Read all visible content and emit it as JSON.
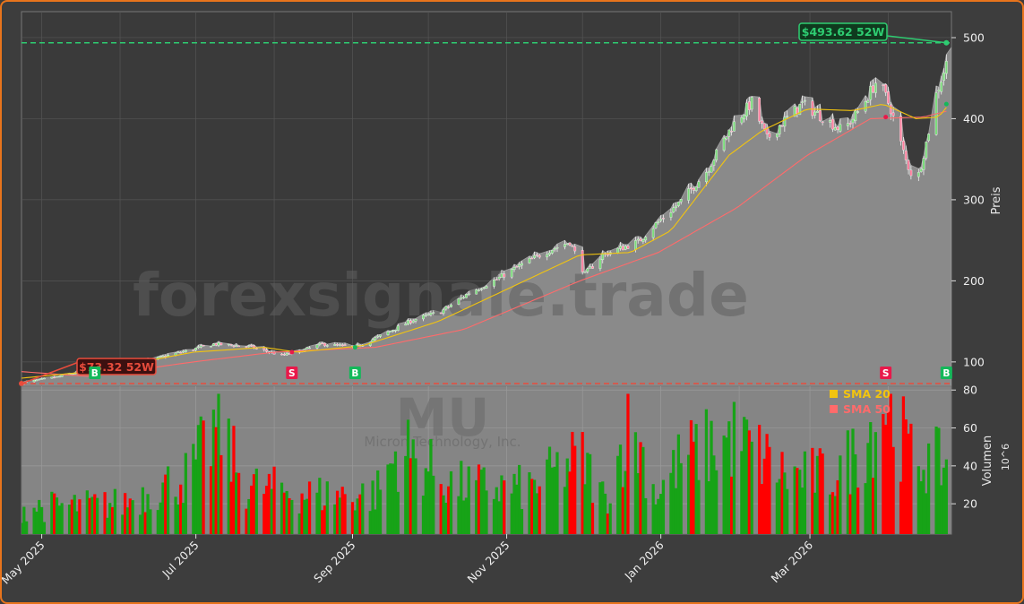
{
  "ticker": "MU",
  "company": "Micron Technology, Inc.",
  "watermark": "forexsignale.trade",
  "colors": {
    "frame": "#e8741c",
    "background": "#3d3d3d",
    "plot_dark": "#3a3a3a",
    "area_fill": "#8a8a8a",
    "up": "#17a317",
    "down": "#ff0000",
    "sma20": "#f2c40f",
    "sma50": "#ff6b6b",
    "high_line": "#2ecc71",
    "low_line": "#e74c3c",
    "buy": "#14b85a",
    "sell": "#e8194a"
  },
  "chart_data": {
    "type": "candlestick",
    "price_axis": {
      "label": "Preis",
      "ticks": [
        100,
        200,
        300,
        400,
        500
      ],
      "range": [
        70,
        532
      ]
    },
    "volume_axis": {
      "label": "Volumen",
      "unit": "10^6",
      "ticks": [
        20,
        40,
        60,
        80
      ],
      "range": [
        4,
        82
      ]
    },
    "x_axis": {
      "range": [
        "2025-04-23",
        "2026-04-26"
      ],
      "ticks": [
        "May 2025",
        "Jul 2025",
        "Sep 2025",
        "Nov 2025",
        "Jan 2026",
        "Mar 2026"
      ],
      "tick_dates": [
        "2025-05-01",
        "2025-07-01",
        "2025-09-01",
        "2025-11-01",
        "2026-01-01",
        "2026-03-01"
      ]
    },
    "legend": [
      {
        "name": "SMA 20",
        "color": "#f2c40f"
      },
      {
        "name": "SMA 50",
        "color": "#ff6b6b"
      }
    ],
    "legend_position": "top-right of volume panel",
    "grid": true,
    "high_52w": {
      "label": "$493.62 52W",
      "value": 493.62,
      "date": "2026-04-24"
    },
    "low_52w": {
      "label": "$73.32 52W",
      "value": 73.32,
      "date": "2025-04-23"
    },
    "signals": [
      {
        "type": "B",
        "date": "2025-05-22",
        "price": 85
      },
      {
        "type": "S",
        "date": "2025-08-08",
        "price": 112
      },
      {
        "type": "B",
        "date": "2025-09-02",
        "price": 118
      },
      {
        "type": "S",
        "date": "2026-03-31",
        "price": 402
      },
      {
        "type": "B",
        "date": "2026-04-24",
        "price": 418
      }
    ],
    "price_keypoints": [
      [
        "2025-04-23",
        74
      ],
      [
        "2025-05-08",
        82
      ],
      [
        "2025-05-22",
        92
      ],
      [
        "2025-06-10",
        100
      ],
      [
        "2025-06-25",
        112
      ],
      [
        "2025-07-08",
        122
      ],
      [
        "2025-07-22",
        119
      ],
      [
        "2025-08-04",
        108
      ],
      [
        "2025-08-10",
        112
      ],
      [
        "2025-08-20",
        122
      ],
      [
        "2025-09-02",
        118
      ],
      [
        "2025-09-12",
        132
      ],
      [
        "2025-09-25",
        152
      ],
      [
        "2025-10-06",
        162
      ],
      [
        "2025-10-17",
        185
      ],
      [
        "2025-10-28",
        202
      ],
      [
        "2025-11-08",
        222
      ],
      [
        "2025-11-18",
        238
      ],
      [
        "2025-11-26",
        248
      ],
      [
        "2025-12-02",
        208
      ],
      [
        "2025-12-09",
        232
      ],
      [
        "2025-12-16",
        240
      ],
      [
        "2025-12-23",
        248
      ],
      [
        "2025-12-30",
        270
      ],
      [
        "2026-01-09",
        298
      ],
      [
        "2026-01-19",
        335
      ],
      [
        "2026-01-29",
        390
      ],
      [
        "2026-02-06",
        420
      ],
      [
        "2026-02-12",
        375
      ],
      [
        "2026-02-19",
        398
      ],
      [
        "2026-02-26",
        418
      ],
      [
        "2026-03-06",
        402
      ],
      [
        "2026-03-14",
        385
      ],
      [
        "2026-03-21",
        412
      ],
      [
        "2026-03-28",
        450
      ],
      [
        "2026-04-02",
        412
      ],
      [
        "2026-04-08",
        348
      ],
      [
        "2026-04-12",
        318
      ],
      [
        "2026-04-16",
        370
      ],
      [
        "2026-04-20",
        430
      ],
      [
        "2026-04-24",
        468
      ],
      [
        "2026-04-26",
        488
      ]
    ],
    "sma20_keypoints": [
      [
        "2025-04-23",
        80
      ],
      [
        "2025-05-20",
        88
      ],
      [
        "2025-06-30",
        112
      ],
      [
        "2025-07-28",
        118
      ],
      [
        "2025-08-10",
        112
      ],
      [
        "2025-09-05",
        120
      ],
      [
        "2025-10-05",
        150
      ],
      [
        "2025-11-15",
        210
      ],
      [
        "2025-11-30",
        232
      ],
      [
        "2025-12-20",
        235
      ],
      [
        "2026-01-05",
        262
      ],
      [
        "2026-01-28",
        355
      ],
      [
        "2026-02-10",
        385
      ],
      [
        "2026-02-28",
        412
      ],
      [
        "2026-03-18",
        410
      ],
      [
        "2026-03-30",
        418
      ],
      [
        "2026-04-12",
        400
      ],
      [
        "2026-04-21",
        402
      ],
      [
        "2026-04-25",
        418
      ]
    ],
    "sma50_keypoints": [
      [
        "2025-04-23",
        88
      ],
      [
        "2025-05-20",
        82
      ],
      [
        "2025-06-30",
        100
      ],
      [
        "2025-08-01",
        112
      ],
      [
        "2025-09-10",
        118
      ],
      [
        "2025-10-15",
        140
      ],
      [
        "2025-11-30",
        200
      ],
      [
        "2025-12-31",
        235
      ],
      [
        "2026-01-31",
        290
      ],
      [
        "2026-02-28",
        355
      ],
      [
        "2026-03-25",
        400
      ],
      [
        "2026-04-15",
        402
      ],
      [
        "2026-04-25",
        410
      ]
    ],
    "volume_keypoints": [
      [
        "2025-04-23",
        18
      ],
      [
        "2025-06-01",
        20
      ],
      [
        "2025-06-28",
        35
      ],
      [
        "2025-07-10",
        62
      ],
      [
        "2025-07-20",
        30
      ],
      [
        "2025-08-15",
        25
      ],
      [
        "2025-09-10",
        25
      ],
      [
        "2025-09-20",
        50
      ],
      [
        "2025-10-10",
        30
      ],
      [
        "2025-11-10",
        28
      ],
      [
        "2025-11-30",
        45
      ],
      [
        "2025-12-10",
        22
      ],
      [
        "2025-12-20",
        64
      ],
      [
        "2025-12-30",
        25
      ],
      [
        "2026-01-10",
        45
      ],
      [
        "2026-01-31",
        55
      ],
      [
        "2026-02-20",
        35
      ],
      [
        "2026-03-10",
        35
      ],
      [
        "2026-03-22",
        50
      ],
      [
        "2026-03-31",
        75
      ],
      [
        "2026-04-10",
        45
      ],
      [
        "2026-04-26",
        40
      ]
    ]
  }
}
